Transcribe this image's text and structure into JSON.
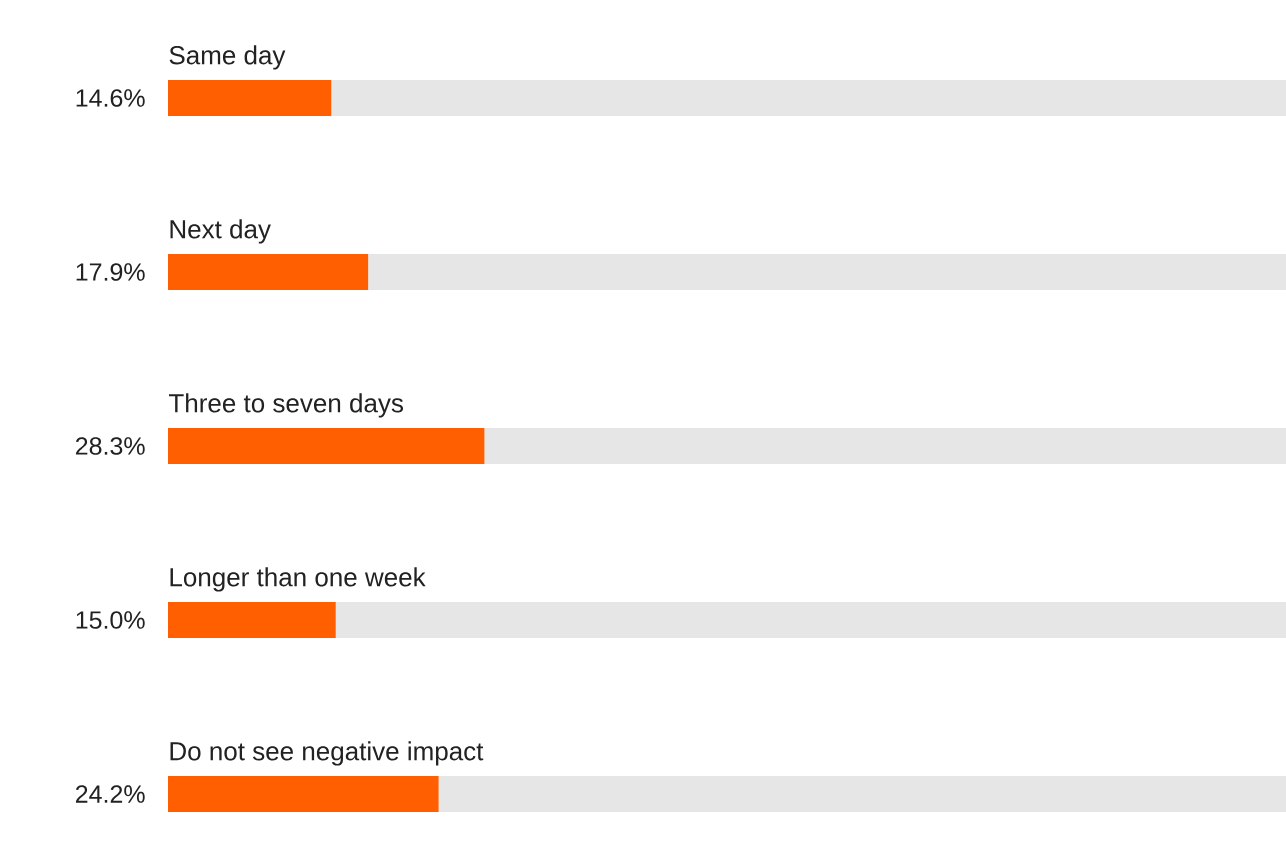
{
  "chart_data": {
    "type": "bar",
    "orientation": "horizontal",
    "categories": [
      "Same day",
      "Next day",
      "Three to seven days",
      "Longer than one week",
      "Do not see negative impact"
    ],
    "values": [
      14.6,
      17.9,
      28.3,
      15.0,
      24.2
    ],
    "value_labels": [
      "14.6%",
      "17.9%",
      "28.3%",
      "15.0%",
      "24.2%"
    ],
    "color": "#ff5f00",
    "xlim": [
      0,
      100
    ]
  }
}
